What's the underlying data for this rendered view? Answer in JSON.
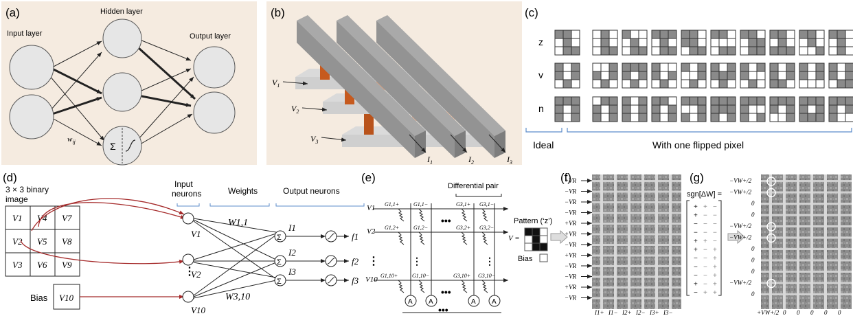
{
  "panel_labels": {
    "a": "(a)",
    "b": "(b)",
    "c": "(c)",
    "d": "(d)",
    "e": "(e)",
    "f": "(f)",
    "g": "(g)"
  },
  "panel_a": {
    "input_layer": "Input layer",
    "hidden_layer": "Hidden layer",
    "output_layer": "Output layer",
    "weight": "w",
    "weight_sub": "ij",
    "sigma": "Σ"
  },
  "panel_b": {
    "voltages": [
      "V",
      "V",
      "V"
    ],
    "voltage_subs": [
      "1",
      "2",
      "3"
    ],
    "currents": [
      "I",
      "I",
      "I"
    ],
    "current_subs": [
      "1",
      "2",
      "3"
    ]
  },
  "panel_c": {
    "rows": [
      "z",
      "v",
      "n"
    ],
    "ideal": "Ideal",
    "flipped": "With one flipped pixel",
    "patterns": {
      "z": [
        1,
        1,
        0,
        0,
        1,
        0,
        0,
        1,
        1
      ],
      "v": [
        1,
        0,
        1,
        1,
        0,
        1,
        0,
        1,
        0
      ],
      "n": [
        1,
        1,
        1,
        1,
        0,
        1,
        1,
        0,
        1
      ]
    }
  },
  "panel_d": {
    "image_label_1": "3 × 3 binary",
    "image_label_2": "image",
    "grid": [
      "V1",
      "V4",
      "V7",
      "V2",
      "V5",
      "V8",
      "V3",
      "V6",
      "V9"
    ],
    "bias": "Bias",
    "bias_cell": "V10",
    "input_neurons_1": "Input",
    "input_neurons_2": "neurons",
    "weights": "Weights",
    "output_neurons": "Output neurons",
    "w_top": "W1,1",
    "w_bottom": "W3,10",
    "node_labels": [
      "V1",
      "V2",
      "V10"
    ],
    "currents": [
      "I1",
      "I2",
      "I3"
    ],
    "outputs": [
      "f1",
      "f2",
      "f3"
    ],
    "dots": "⋮"
  },
  "panel_e": {
    "differential_pair": "Differential pair",
    "rows": [
      "V1",
      "V2",
      "V10"
    ],
    "g_row1": [
      "G1,1+",
      "G1,1−",
      "G3,1+",
      "G3,1−"
    ],
    "g_row2": [
      "G1,2+",
      "G1,2−",
      "G3,2+",
      "G3,2−"
    ],
    "g_row3": [
      "G1,10+",
      "G1,10−",
      "G3,10+",
      "G3,10−"
    ],
    "amp": "A",
    "pattern": "Pattern (‘z’)",
    "v_eq": "V =",
    "bias": "Bias",
    "pattern_cells": [
      1,
      1,
      0,
      0,
      1,
      0,
      0,
      1,
      1
    ]
  },
  "panel_f": {
    "row_labels": [
      "+VR",
      "−VR",
      "−VR",
      "−VR",
      "+VR",
      "+VR",
      "−VR",
      "+VR",
      "−VR",
      "−VR",
      "+VR",
      "−VR"
    ],
    "col_labels": [
      "I1+",
      "I1−",
      "I2+",
      "I2−",
      "I3+",
      "I3−"
    ]
  },
  "panel_g": {
    "sgn_label": "sgn[ΔW] =",
    "matrix": [
      [
        "+",
        "+",
        "−"
      ],
      [
        "+",
        "−",
        "−"
      ],
      [
        "−",
        "−",
        "−"
      ],
      [
        "−",
        "−",
        "−"
      ],
      [
        "+",
        "+",
        "−"
      ],
      [
        "+",
        "−",
        "+"
      ],
      [
        "−",
        "−",
        "+"
      ],
      [
        "−",
        "−",
        "+"
      ],
      [
        "−",
        "−",
        "+"
      ],
      [
        "+",
        "−",
        "+"
      ],
      [
        "−",
        "+",
        "+"
      ]
    ],
    "row_labels": [
      "−VW+/2",
      "−VW+/2",
      "0",
      "0",
      "−VW+/2",
      "−VW+/2",
      "0",
      "0",
      "0",
      "−VW+/2",
      "0"
    ],
    "col_labels": [
      "+VW+/2",
      "0",
      "0",
      "0",
      "0",
      "0"
    ]
  }
}
